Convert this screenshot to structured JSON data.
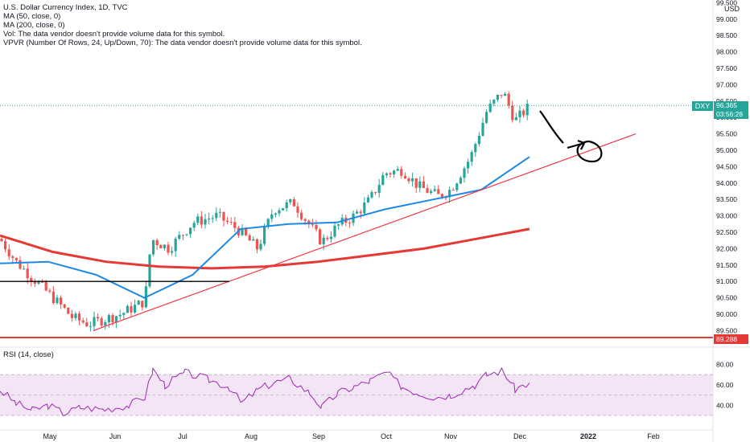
{
  "legend": {
    "title": "U.S. Dollar Currency Index, 1D, TVC",
    "ma50": "MA (50, close, 0)",
    "ma200": "MA (200, close, 0)",
    "vol": "Vol: The data vendor doesn't provide volume data for this symbol.",
    "vpvr": "VPVR (Number Of Rows, 24, Up/Down, 70): The data vendor doesn't provide volume data for this symbol."
  },
  "currency": "USD",
  "symbol_tag": "DXY",
  "last_price": "96.365",
  "countdown": "03:56:28",
  "level_label": "89.288",
  "rsi_label": "RSI (14, close)",
  "colors": {
    "up": "#26a69a",
    "down": "#ef5350",
    "ma50": "#1e88e5",
    "ma200": "#e53935",
    "trend": "#f23645",
    "rsi": "#9c27b0",
    "rsi_band": "#f3e5f5"
  },
  "chart_data": [
    {
      "type": "candlestick",
      "price_axis_ticks": [
        "99.500",
        "99.000",
        "98.500",
        "98.000",
        "97.500",
        "97.000",
        "96.500",
        "96.000",
        "95.500",
        "95.000",
        "94.500",
        "94.000",
        "93.500",
        "93.000",
        "92.500",
        "92.000",
        "91.500",
        "91.000",
        "90.500",
        "90.000",
        "89.500"
      ],
      "x_labels": [
        "May",
        "Jun",
        "Jul",
        "Aug",
        "Sep",
        "Oct",
        "Nov",
        "Dec",
        "2022",
        "Feb"
      ],
      "last": 96.365,
      "horizontal_levels": [
        89.288,
        91.0
      ],
      "ma50": [
        [
          91.5,
          91.55
        ],
        [
          91.75,
          91.6
        ],
        [
          92.0,
          91.2
        ],
        [
          92.5,
          90.5
        ],
        [
          93.0,
          91.2
        ],
        [
          93.5,
          92.6
        ],
        [
          94.0,
          92.75
        ],
        [
          94.5,
          92.8
        ],
        [
          95.0,
          93.2
        ],
        [
          95.5,
          93.5
        ],
        [
          96.0,
          93.8
        ],
        [
          96.5,
          94.8
        ]
      ],
      "ma200": [
        [
          91.9,
          92.4
        ],
        [
          92.3,
          91.9
        ],
        [
          92.7,
          91.6
        ],
        [
          93.2,
          91.45
        ],
        [
          93.8,
          91.4
        ],
        [
          94.3,
          91.45
        ],
        [
          94.7,
          91.6
        ],
        [
          95.0,
          91.8
        ],
        [
          95.4,
          92.0
        ],
        [
          95.8,
          92.3
        ],
        [
          96.3,
          92.6
        ]
      ],
      "trendline": {
        "from": 89.5,
        "to": 95.5
      }
    },
    {
      "type": "line",
      "title": "RSI (14, close)",
      "y_ticks": [
        "80.00",
        "60.00",
        "40.00"
      ],
      "bands": [
        70,
        30
      ]
    }
  ]
}
